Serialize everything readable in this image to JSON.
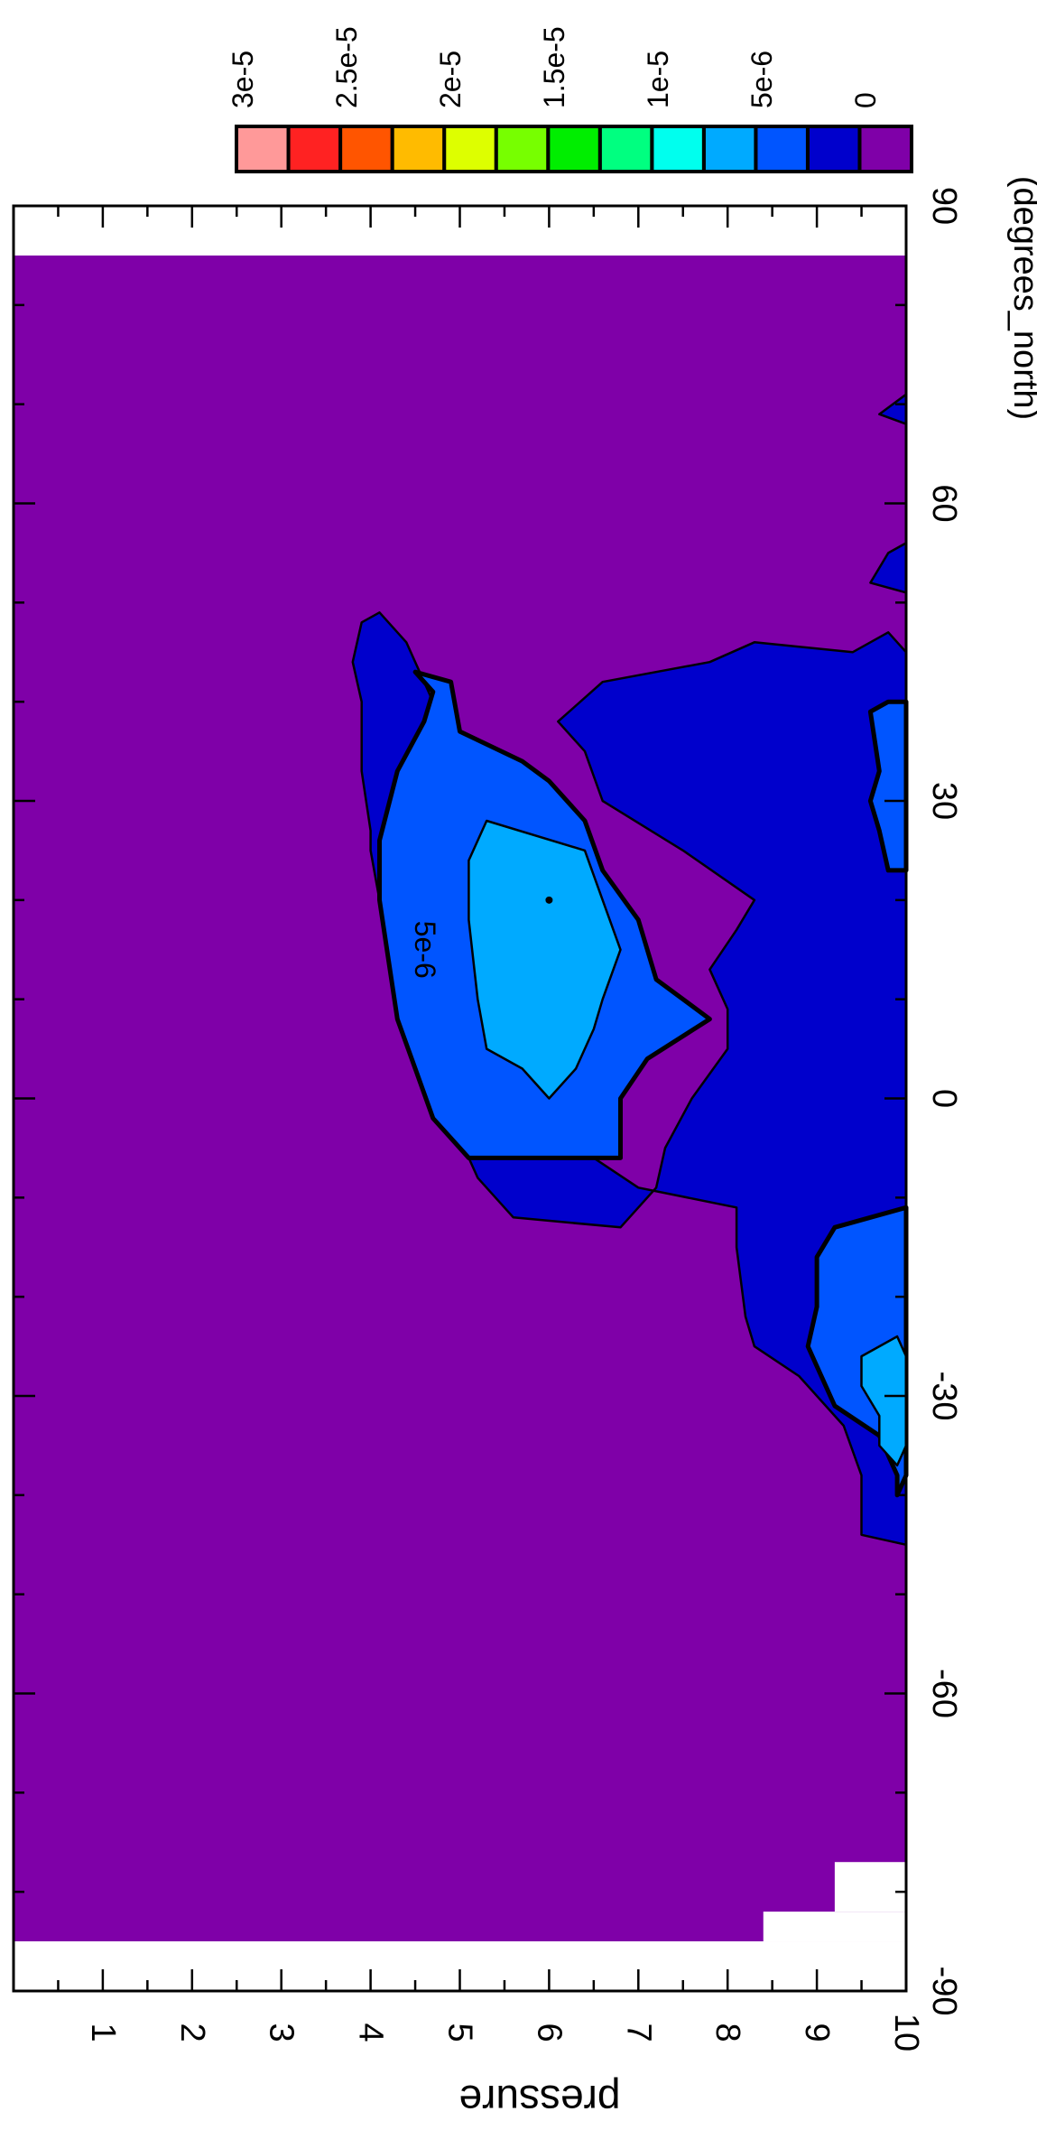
{
  "chart_data": {
    "type": "contour",
    "orientation": "rotated-90-clockwise",
    "ylabel": "pressure",
    "xlabel": "(degrees_north)",
    "x_ticks": [
      "-90",
      "-60",
      "-30",
      "0",
      "30",
      "60",
      "90"
    ],
    "x_tick_values": [
      -90,
      -60,
      -30,
      0,
      30,
      60,
      90
    ],
    "x_range": [
      -90,
      90
    ],
    "y_ticks": [
      "1",
      "2",
      "3",
      "4",
      "5",
      "6",
      "7",
      "8",
      "9",
      "10"
    ],
    "y_tick_values": [
      1,
      2,
      3,
      4,
      5,
      6,
      7,
      8,
      9,
      10
    ],
    "y_range": [
      0,
      10
    ],
    "data_x_extent": [
      -85,
      85
    ],
    "contour_labels": [
      {
        "text": "5e-6",
        "lat": 15,
        "pressure": 4.5
      }
    ],
    "levels": [
      0,
      2.5e-06,
      5e-06,
      7.5e-06,
      1e-05,
      1.25e-05,
      1.5e-05,
      1.75e-05,
      2e-05,
      2.25e-05,
      2.5e-05,
      2.75e-05,
      3e-05
    ],
    "colorbar_labels": [
      "0",
      "5e-6",
      "1e-5",
      "1.5e-5",
      "2e-5",
      "2.5e-5",
      "3e-5"
    ],
    "colorbar_label_values": [
      0,
      5e-06,
      1e-05,
      1.5e-05,
      2e-05,
      2.5e-05,
      3e-05
    ],
    "colors": [
      "#7f00a8",
      "#0000cc",
      "#0055ff",
      "#00aaff",
      "#00ffee",
      "#00ff80",
      "#00ee00",
      "#77ff00",
      "#ddff00",
      "#ffbb00",
      "#ff5500",
      "#ff2222",
      "#ff9999"
    ],
    "missing_regions": [
      {
        "lat": [
          -90,
          -85
        ],
        "pressure": [
          0,
          10
        ]
      },
      {
        "lat": [
          85,
          90
        ],
        "pressure": [
          0,
          10
        ]
      },
      {
        "lat": [
          -85,
          -82
        ],
        "pressure": [
          8.4,
          10
        ]
      },
      {
        "lat": [
          -82,
          -77
        ],
        "pressure": [
          9.2,
          10
        ]
      }
    ],
    "regions": [
      {
        "level_index": 1,
        "points": [
          [
            -45,
            10
          ],
          [
            -44,
            9.5
          ],
          [
            -38,
            9.5
          ],
          [
            -33,
            9.3
          ],
          [
            -28,
            8.8
          ],
          [
            -25,
            8.3
          ],
          [
            -22,
            8.2
          ],
          [
            -15,
            8.1
          ],
          [
            -11,
            8.1
          ],
          [
            -9,
            7
          ],
          [
            -3,
            6
          ],
          [
            5,
            5.3
          ],
          [
            10,
            5
          ],
          [
            18,
            5
          ],
          [
            25,
            4.9
          ],
          [
            33,
            4.8
          ],
          [
            40,
            4.7
          ],
          [
            46,
            4.4
          ],
          [
            49,
            4.1
          ],
          [
            48,
            3.9
          ],
          [
            44,
            3.8
          ],
          [
            40,
            3.9
          ],
          [
            33,
            3.9
          ],
          [
            27,
            4
          ],
          [
            25,
            4
          ],
          [
            20,
            4.1
          ],
          [
            14,
            4.2
          ],
          [
            8,
            4.3
          ],
          [
            4,
            4.5
          ],
          [
            0,
            4.7
          ],
          [
            -4,
            5
          ],
          [
            -8,
            5.2
          ],
          [
            -12,
            5.6
          ],
          [
            -13,
            6.8
          ],
          [
            -9,
            7.2
          ],
          [
            -5,
            7.3
          ],
          [
            0,
            7.6
          ],
          [
            5,
            8
          ],
          [
            9,
            8
          ],
          [
            13,
            7.8
          ],
          [
            17,
            8.1
          ],
          [
            20,
            8.3
          ],
          [
            25,
            7.5
          ],
          [
            30,
            6.6
          ],
          [
            35,
            6.4
          ],
          [
            38,
            6.1
          ],
          [
            42,
            6.6
          ],
          [
            44,
            7.8
          ],
          [
            46,
            8.3
          ],
          [
            45,
            9.4
          ],
          [
            47,
            9.8
          ],
          [
            45,
            10
          ]
        ]
      },
      {
        "level_index": 1,
        "points": [
          [
            51,
            10
          ],
          [
            52,
            9.6
          ],
          [
            55,
            9.8
          ],
          [
            56,
            10
          ]
        ]
      },
      {
        "level_index": 1,
        "points": [
          [
            68,
            10
          ],
          [
            69,
            9.7
          ],
          [
            71,
            10
          ]
        ]
      },
      {
        "level_index": 2,
        "points": [
          [
            -6,
            5.1
          ],
          [
            -2,
            4.7
          ],
          [
            3,
            4.5
          ],
          [
            8,
            4.3
          ],
          [
            14,
            4.2
          ],
          [
            20,
            4.1
          ],
          [
            26,
            4.1
          ],
          [
            33,
            4.3
          ],
          [
            38,
            4.6
          ],
          [
            41,
            4.7
          ],
          [
            43,
            4.5
          ],
          [
            42,
            4.9
          ],
          [
            37,
            5
          ],
          [
            34,
            5.7
          ],
          [
            32,
            6
          ],
          [
            28,
            6.4
          ],
          [
            23,
            6.6
          ],
          [
            18,
            7
          ],
          [
            12,
            7.2
          ],
          [
            8,
            7.8
          ],
          [
            4,
            7.1
          ],
          [
            0,
            6.8
          ],
          [
            -6,
            6.8
          ],
          [
            -6,
            5.8
          ]
        ]
      },
      {
        "level_index": 2,
        "points": [
          [
            -40,
            9.9
          ],
          [
            -38,
            9.9
          ],
          [
            -34,
            9.7
          ],
          [
            -31,
            9.2
          ],
          [
            -27,
            9.0
          ],
          [
            -25,
            8.9
          ],
          [
            -21,
            9.0
          ],
          [
            -16,
            9.0
          ],
          [
            -13,
            9.2
          ],
          [
            -11,
            10
          ],
          [
            -13,
            10
          ],
          [
            -24,
            10
          ],
          [
            -38,
            10
          ]
        ]
      },
      {
        "level_index": 2,
        "points": [
          [
            23,
            9.8
          ],
          [
            27,
            9.7
          ],
          [
            30,
            9.6
          ],
          [
            33,
            9.7
          ],
          [
            39,
            9.6
          ],
          [
            40,
            9.8
          ],
          [
            40,
            10
          ],
          [
            23,
            10
          ]
        ]
      },
      {
        "level_index": 3,
        "points": [
          [
            0,
            6
          ],
          [
            3,
            5.7
          ],
          [
            5,
            5.3
          ],
          [
            10,
            5.2
          ],
          [
            18,
            5.1
          ],
          [
            24,
            5.1
          ],
          [
            28,
            5.3
          ],
          [
            25,
            6.4
          ],
          [
            20,
            6.6
          ],
          [
            15,
            6.8
          ],
          [
            10,
            6.6
          ],
          [
            7,
            6.5
          ],
          [
            3,
            6.3
          ]
        ]
      },
      {
        "level_index": 3,
        "points": [
          [
            -37,
            9.9
          ],
          [
            -35,
            9.7
          ],
          [
            -32,
            9.7
          ],
          [
            -29,
            9.5
          ],
          [
            -26,
            9.5
          ],
          [
            -24,
            9.9
          ],
          [
            -26,
            10
          ],
          [
            -35,
            10
          ]
        ]
      }
    ]
  }
}
